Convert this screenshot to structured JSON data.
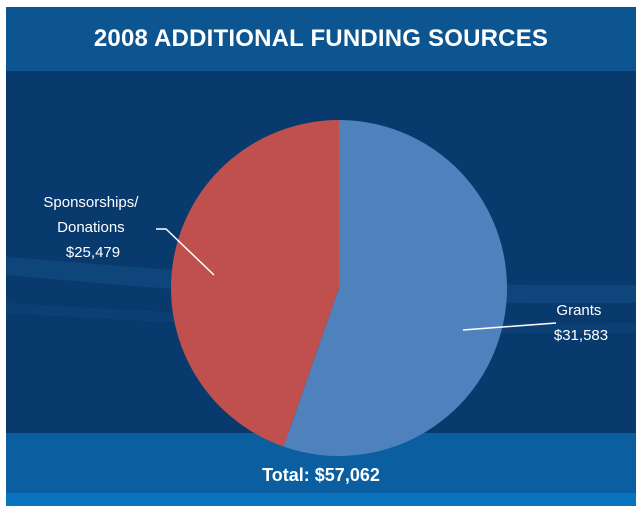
{
  "chart_data": {
    "type": "pie",
    "title": "2008 ADDITIONAL FUNDING SOURCES",
    "slices": [
      {
        "label_lines": [
          "Grants"
        ],
        "value_label": "$31,583",
        "value": 31583,
        "color": "#4f81bd"
      },
      {
        "label_lines": [
          "Sponsorships/",
          "Donations"
        ],
        "value_label": "$25,479",
        "value": 25479,
        "color": "#c0504d"
      }
    ],
    "total_label": "Total: $57,062",
    "total": 57062
  },
  "colors": {
    "background": "#0a3a6e",
    "header": "#0d5590",
    "footer": "#0b5ea0",
    "text": "#ffffff"
  }
}
